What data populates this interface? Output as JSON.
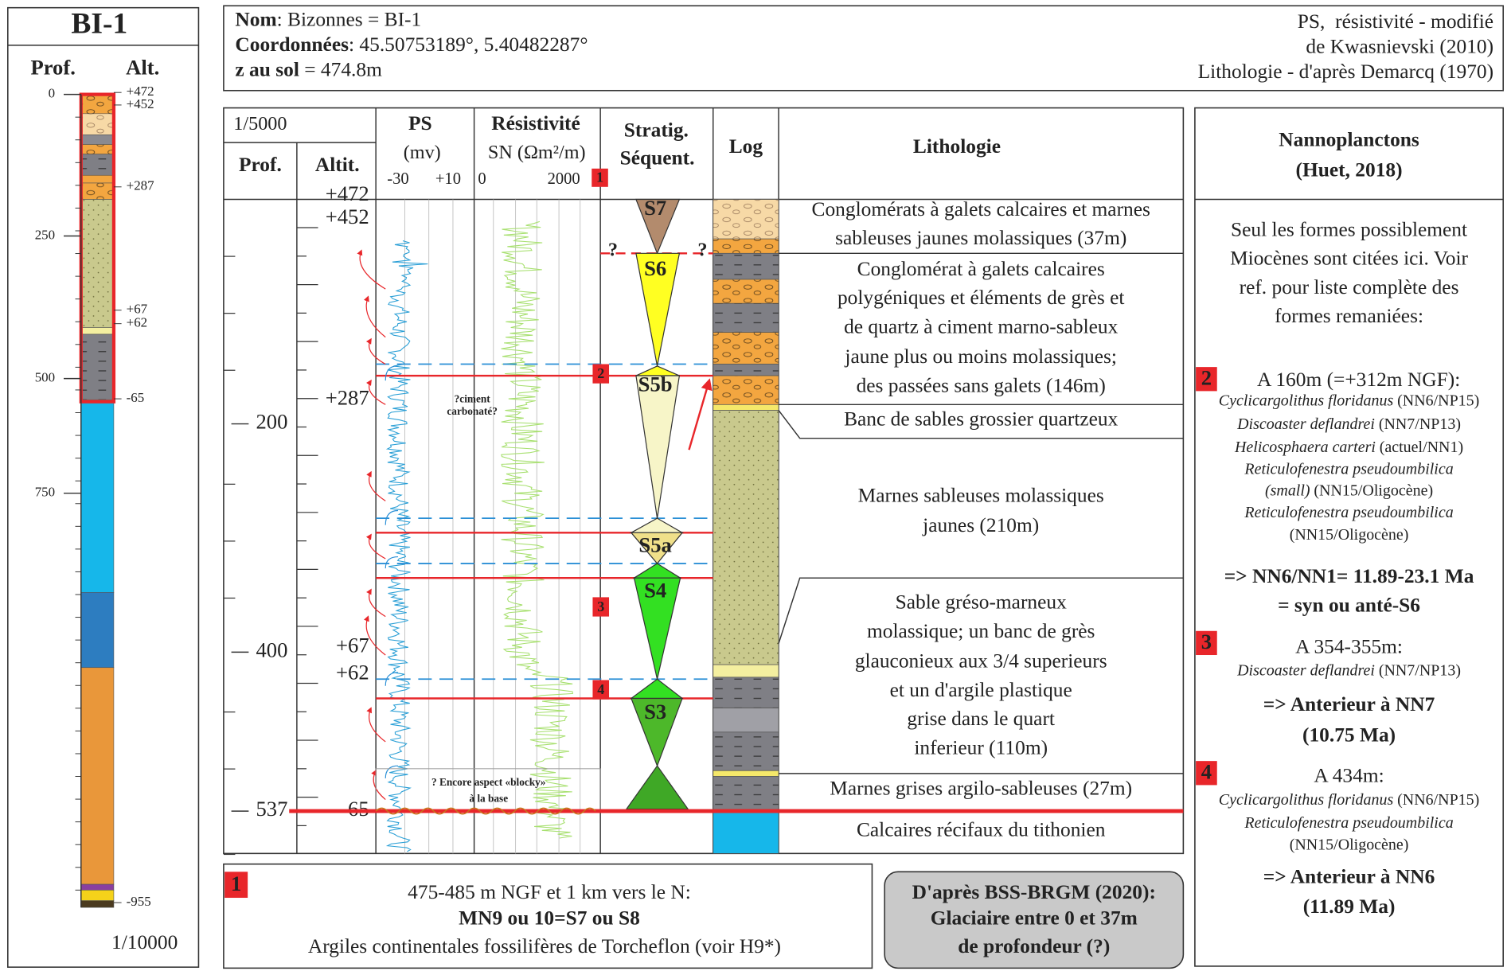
{
  "left_panel": {
    "title": "BI-1",
    "depth_header": "Prof.",
    "altitude_header": "Alt.",
    "depth_ticks": [
      "0",
      "250",
      "500",
      "750"
    ],
    "altitudes": [
      "+472",
      "+452",
      "+287",
      "+67",
      "+62",
      "-65",
      "-955"
    ],
    "scale": "1/10000"
  },
  "header": {
    "lines": [
      {
        "label": "Nom",
        "value": ": Bizonnes = BI-1"
      },
      {
        "label": "Coordonnées",
        "value": ": 45.50753189°, 5.40482287°"
      },
      {
        "label": "z au sol",
        "value": " = 474.8m"
      }
    ],
    "sources": [
      "PS,  résistivité - modifié",
      "de Kwasnievski (2010)",
      "Lithologie - d'après Demarcq (1970)"
    ]
  },
  "log": {
    "scale": "1/5000",
    "columns": {
      "depth": "Prof.",
      "altitude": "Altit.",
      "ps": "PS",
      "ps_unit": "(mv)",
      "ps_ticks": [
        "-30",
        "+10"
      ],
      "resistivity": "Résistivité",
      "resistivity_unit": "SN (Ωm²/m)",
      "resistivity_ticks": [
        "0",
        "2000"
      ],
      "stratigraphy": [
        "Stratig.",
        "Séquent."
      ],
      "log": "Log",
      "lithology": "Lithologie"
    },
    "depths": [
      "200",
      "400",
      "537"
    ],
    "altitudes": [
      "+472",
      "+452",
      "+287",
      "+67",
      "+62",
      "-65"
    ],
    "sequences": [
      "S7",
      "S6",
      "S5b",
      "S5a",
      "S4",
      "S3"
    ],
    "uncertain": [
      "?",
      "?"
    ],
    "markers": [
      "1",
      "2",
      "3",
      "4"
    ],
    "annotations": [
      [
        "?ciment",
        "carbonaté?"
      ],
      [
        "? Encore aspect «blocky»",
        "à la base"
      ]
    ],
    "lithology": [
      [
        "Conglomérats à galets calcaires et marnes",
        "sableuses jaunes molassiques (37m)"
      ],
      [
        "Conglomérat à galets calcaires",
        "polygéniques et éléments de grès et",
        "de quartz à ciment marno-sableux",
        "jaune plus ou moins molassiques;",
        "des passées sans galets (146m)"
      ],
      [
        "Banc de sables grossier quartzeux"
      ],
      [
        "Marnes sableuses molassiques",
        "jaunes (210m)"
      ],
      [
        "Sable gréso-marneux",
        "molassique; un banc de grès",
        "glauconieux aux 3/4 superieurs",
        "et un d'argile plastique",
        "grise dans le quart",
        "inferieur (110m)"
      ],
      [
        "Marnes grises argilo-sableuses (27m)"
      ],
      [
        "Calcaires récifaux du tithonien"
      ]
    ]
  },
  "nannoplankton": {
    "title": "Nannoplanctons",
    "reference": "(Huet, 2018)",
    "intro": [
      "Seul les formes possiblement",
      "Miocènes sont citées ici. Voir",
      "ref. pour liste complète des",
      "formes remaniées:"
    ],
    "samples": [
      {
        "marker": "2",
        "heading": "A 160m (=+312m NGF):",
        "taxa": [
          {
            "name": "Cyclicargolithus floridanus",
            "range": "(NN6/NP15)"
          },
          {
            "name": "Discoaster deflandrei",
            "range": "(NN7/NP13)"
          },
          {
            "name": "Helicosphaera carteri",
            "range": "(actuel/NN1)"
          },
          {
            "name": "Reticulofenestra pseudoumbilica"
          },
          {
            "name": "(small)",
            "range": "(NN15/Oligocène)"
          },
          {
            "name": "Reticulofenestra pseudoumbilica"
          },
          {
            "range": "(NN15/Oligocène)"
          }
        ],
        "conclusion": [
          "=> NN6/NN1= 11.89-23.1 Ma",
          "= syn ou anté-S6"
        ]
      },
      {
        "marker": "3",
        "heading": "A 354-355m:",
        "taxa": [
          {
            "name": "Discoaster deflandrei",
            "range": "(NN7/NP13)"
          }
        ],
        "conclusion": [
          "=> Anterieur à NN7",
          "(10.75 Ma)"
        ]
      },
      {
        "marker": "4",
        "heading": "A 434m:",
        "taxa": [
          {
            "name": "Cyclicargolithus floridanus",
            "range": "(NN6/NP15)"
          },
          {
            "name": "Reticulofenestra pseudoumbilica"
          },
          {
            "range": "(NN15/Oligocène)"
          }
        ],
        "conclusion": [
          "=> Anterieur à NN6",
          "(11.89 Ma)"
        ]
      }
    ]
  },
  "notes": {
    "marker": "1",
    "lines": [
      "475-485 m NGF et 1 km vers le N:",
      "MN9 ou 10=S7 ou S8",
      "Argiles continentales fossilifères de Torcheflon (voir H9*)"
    ],
    "source_box": [
      "D'après BSS-BRGM (2020):",
      "Glaciaire entre 0 et 37m",
      "de profondeur (?)"
    ]
  }
}
